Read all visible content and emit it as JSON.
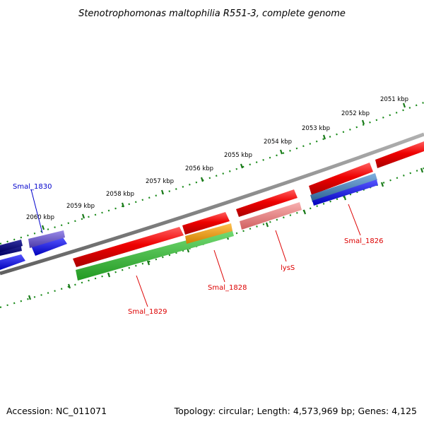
{
  "title": "Stenotrophomonas maltophilia R551-3, complete genome",
  "footer": {
    "accession": "Accession: NC_011071",
    "summary": "Topology: circular; Length: 4,573,969 bp; Genes: 4,125"
  },
  "scale_labels": [
    "2051 kbp",
    "2052 kbp",
    "2053 kbp",
    "2054 kbp",
    "2055 kbp",
    "2056 kbp",
    "2057 kbp",
    "2058 kbp",
    "2059 kbp",
    "2060 kbp"
  ],
  "gene_labels": [
    {
      "text": "Smal_1830",
      "color": "#0000cc"
    },
    {
      "text": "Smal_1829",
      "color": "#dd0000"
    },
    {
      "text": "Smal_1828",
      "color": "#dd0000"
    },
    {
      "text": "lysS",
      "color": "#dd0000"
    },
    {
      "text": "Smal_1826",
      "color": "#dd0000"
    }
  ],
  "colors": {
    "backbone": "#808080",
    "scale_ticks": "#1a7a1a",
    "cds_red": "#ee0000",
    "cds_pink": "#f08080",
    "cds_green": "#33bb33",
    "cds_orange": "#f0a020",
    "cds_blue": "#0000ee",
    "cds_purple": "#6a5acd",
    "cds_steel": "#4682b4",
    "cds_navy": "#000080"
  }
}
